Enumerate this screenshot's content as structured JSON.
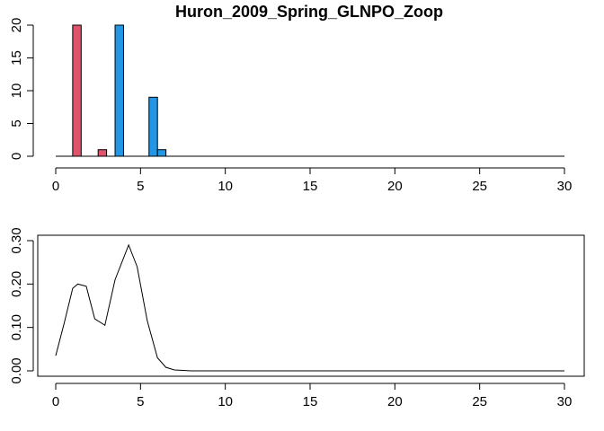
{
  "chart_data": [
    {
      "type": "bar",
      "title": "Huron_2009_Spring_GLNPO_Zoop",
      "xlabel": "",
      "ylabel": "",
      "xlim": [
        0,
        30
      ],
      "ylim": [
        0,
        20
      ],
      "x_ticks": [
        "0",
        "5",
        "10",
        "15",
        "20",
        "25",
        "30"
      ],
      "y_ticks": [
        "0",
        "5",
        "10",
        "15",
        "20"
      ],
      "grid": false,
      "legend": "none",
      "series": [
        {
          "color": "#DF536B",
          "bars": [
            {
              "x_left": 1.0,
              "x_right": 1.5,
              "value": 20
            },
            {
              "x_left": 2.5,
              "x_right": 3.0,
              "value": 1
            }
          ]
        },
        {
          "color": "#2297E6",
          "bars": [
            {
              "x_left": 3.5,
              "x_right": 4.0,
              "value": 20
            },
            {
              "x_left": 5.5,
              "x_right": 6.0,
              "value": 9
            },
            {
              "x_left": 6.0,
              "x_right": 6.5,
              "value": 1
            }
          ]
        }
      ]
    },
    {
      "type": "line",
      "title": "",
      "xlabel": "",
      "ylabel": "",
      "xlim": [
        0,
        30
      ],
      "ylim": [
        0,
        0.3
      ],
      "x_ticks": [
        "0",
        "5",
        "10",
        "15",
        "20",
        "25",
        "30"
      ],
      "y_ticks": [
        "0.00",
        "0.10",
        "0.20",
        "0.30"
      ],
      "grid": false,
      "legend": "none",
      "series": [
        {
          "color": "#000000",
          "x": [
            0,
            0.5,
            1,
            1.3,
            1.8,
            2.3,
            2.9,
            3.5,
            4.3,
            4.8,
            5.4,
            6.0,
            6.5,
            7.0,
            7.5,
            8,
            10,
            15,
            20,
            25,
            30
          ],
          "y": [
            0.035,
            0.11,
            0.19,
            0.2,
            0.195,
            0.12,
            0.105,
            0.21,
            0.29,
            0.24,
            0.115,
            0.03,
            0.008,
            0.002,
            0.001,
            0,
            0,
            0,
            0,
            0,
            0
          ]
        }
      ]
    }
  ]
}
